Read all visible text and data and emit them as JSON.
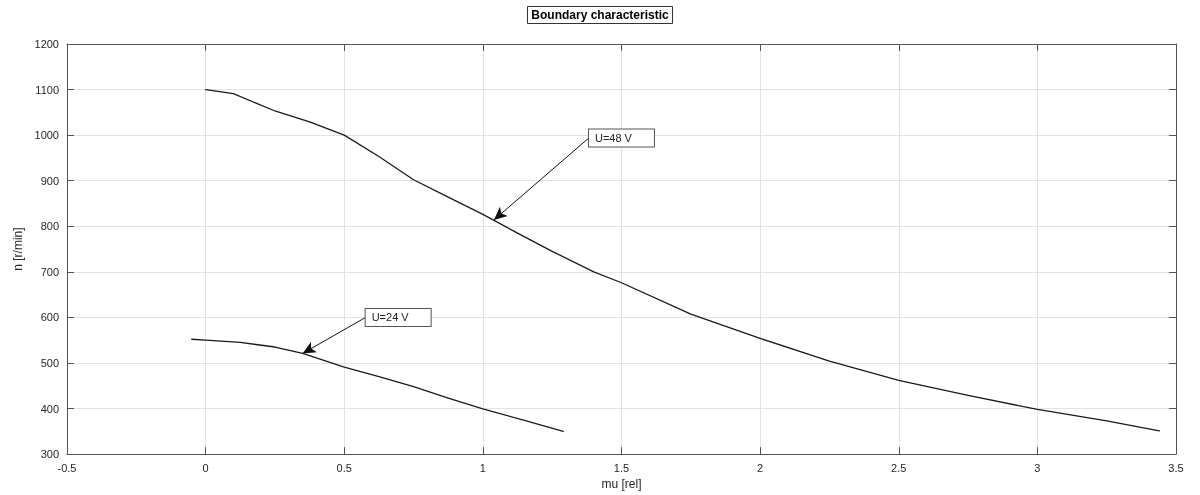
{
  "chart_data": {
    "type": "line",
    "title": "Boundary characteristic",
    "xlabel": "mu [rel]",
    "ylabel": "n [r/min]",
    "xlim": [
      -0.5,
      3.5
    ],
    "xticks": [
      -0.5,
      0,
      0.5,
      1,
      1.5,
      2,
      2.5,
      3,
      3.5
    ],
    "ylim": [
      300,
      1200
    ],
    "yticks": [
      300,
      400,
      500,
      600,
      700,
      800,
      900,
      1000,
      1100,
      1200
    ],
    "grid": true,
    "marker": "none",
    "line_style": "solid",
    "series": [
      {
        "color": "#1a1a1a",
        "x": [
          0,
          0.1,
          0.25,
          0.375,
          0.5,
          0.625,
          0.75,
          0.875,
          1,
          1.125,
          1.25,
          1.4,
          1.5,
          1.75,
          2,
          2.25,
          2.5,
          2.75,
          3,
          3.25,
          3.44
        ],
        "values": [
          1100,
          1091,
          1053,
          1029,
          1000,
          953,
          902,
          864,
          826,
          785,
          745,
          700,
          676,
          607,
          554,
          504,
          462,
          429,
          398,
          373,
          351
        ]
      },
      {
        "color": "#1a1a1a",
        "x": [
          -0.05,
          0,
          0.125,
          0.25,
          0.35,
          0.5,
          0.625,
          0.75,
          0.875,
          1,
          1.15,
          1.29
        ],
        "values": [
          552,
          550,
          545,
          535,
          521,
          491,
          470,
          448,
          423,
          399,
          374,
          350
        ]
      }
    ],
    "annotations": [
      {
        "text": "U=48 V",
        "x": 1.04,
        "y": 814
      },
      {
        "text": "U=24 V",
        "x": 0.35,
        "y": 521
      }
    ]
  }
}
